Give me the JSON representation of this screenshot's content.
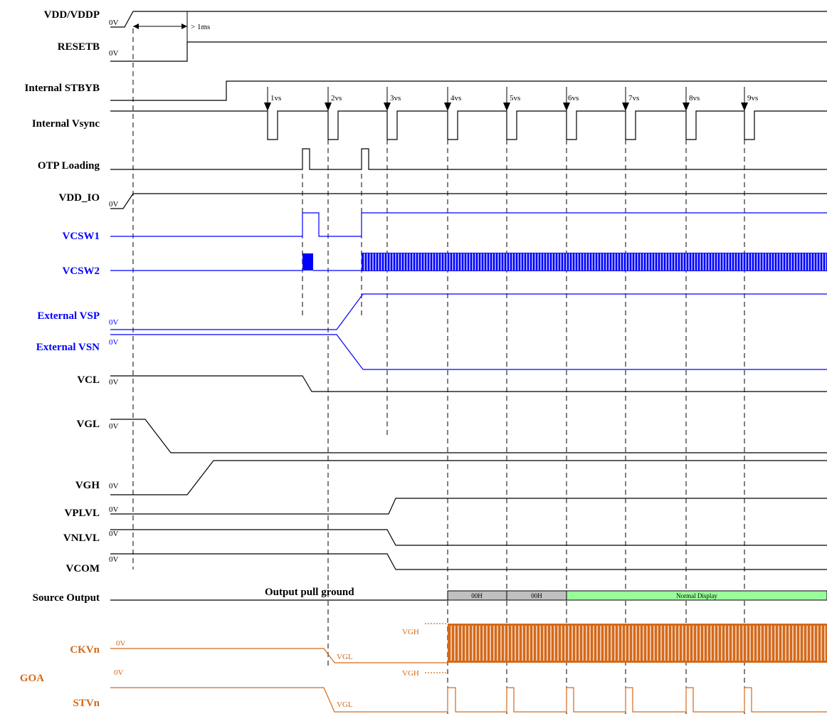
{
  "colors": {
    "black": "#000000",
    "blue": "#0000ff",
    "orange": "#d4691a",
    "gray_box": "#c0c0c0",
    "green_box": "#99ff99"
  },
  "signals": {
    "vdd_vddp": "VDD/VDDP",
    "resetb": "RESETB",
    "internal_stbyb": "Internal STBYB",
    "internal_vsync": "Internal Vsync",
    "otp_loading": "OTP Loading",
    "vdd_io": "VDD_IO",
    "vcsw1": "VCSW1",
    "vcsw2": "VCSW2",
    "external_vsp": "External VSP",
    "external_vsn": "External VSN",
    "vcl": "VCL",
    "vgl": "VGL",
    "vgh": "VGH",
    "vplvl": "VPLVL",
    "vnlvl": "VNLVL",
    "vcom": "VCOM",
    "source_output": "Source Output",
    "ckvn": "CKVn",
    "goa": "GOA",
    "stvn": "STVn"
  },
  "zero_volt": "0V",
  "timing_note": "> 1ms",
  "vsync_markers": [
    "1vs",
    "2vs",
    "3vs",
    "4vs",
    "5vs",
    "6vs",
    "7vs",
    "8vs",
    "9vs"
  ],
  "source_output": {
    "pull_ground": "Output pull ground",
    "segment_1": "00H",
    "segment_2": "00H",
    "normal": "Normal Display"
  },
  "goa_levels": {
    "high": "VGH",
    "low": "VGL"
  }
}
